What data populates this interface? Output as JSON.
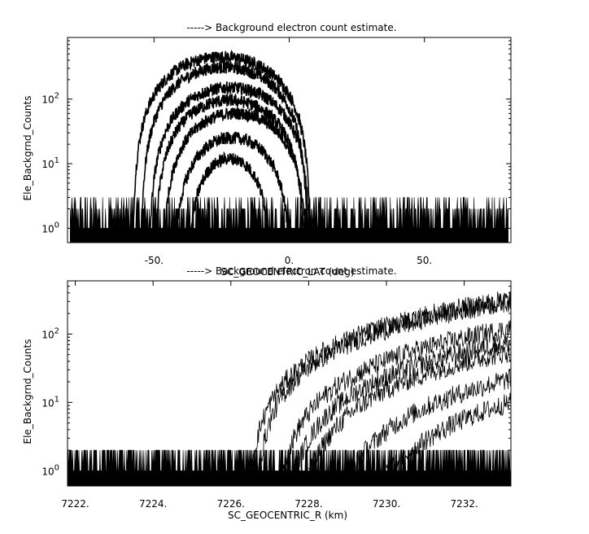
{
  "chart_data": [
    {
      "type": "line",
      "title": "-----> Background electron count estimate.",
      "xlabel": "SC_GEOCENTRIC_LAT (deg)",
      "ylabel": "Ele_Backgrnd_Counts",
      "xlim": [
        -82,
        82
      ],
      "ylim": [
        0.6,
        900
      ],
      "y_scale": "log",
      "x_ticks": [
        {
          "value": -50,
          "label": "-50."
        },
        {
          "value": 0,
          "label": "0."
        },
        {
          "value": 50,
          "label": "50."
        }
      ],
      "y_ticks": [
        {
          "value": 1,
          "base": "10",
          "exp": "0"
        },
        {
          "value": 10,
          "base": "10",
          "exp": "1"
        },
        {
          "value": 100,
          "base": "10",
          "exp": "2"
        }
      ],
      "background_noise_range": [
        1,
        3
      ],
      "noise_x_range": [
        -81,
        81
      ],
      "series": [
        {
          "peak_x": -25,
          "peak_y": 450,
          "half_width": 33
        },
        {
          "peak_x": -24,
          "peak_y": 310,
          "half_width": 31
        },
        {
          "peak_x": -22,
          "peak_y": 150,
          "half_width": 30
        },
        {
          "peak_x": -22,
          "peak_y": 95,
          "half_width": 28
        },
        {
          "peak_x": -20,
          "peak_y": 60,
          "half_width": 27
        },
        {
          "peak_x": -21,
          "peak_y": 25,
          "half_width": 22
        },
        {
          "peak_x": -22,
          "peak_y": 12,
          "half_width": 16
        }
      ]
    },
    {
      "type": "line",
      "title": "-----> Background electron count estimate.",
      "xlabel": "SC_GEOCENTRIC_R (km)",
      "ylabel": "Ele_Backgrnd_Counts",
      "xlim": [
        7221.8,
        7233.2
      ],
      "ylim": [
        0.6,
        600
      ],
      "y_scale": "log",
      "x_ticks": [
        {
          "value": 7222,
          "label": "7222."
        },
        {
          "value": 7224,
          "label": "7224."
        },
        {
          "value": 7226,
          "label": "7226."
        },
        {
          "value": 7228,
          "label": "7228."
        },
        {
          "value": 7230,
          "label": "7230."
        },
        {
          "value": 7232,
          "label": "7232."
        }
      ],
      "y_ticks": [
        {
          "value": 1,
          "base": "10",
          "exp": "0"
        },
        {
          "value": 10,
          "base": "10",
          "exp": "1"
        },
        {
          "value": 100,
          "base": "10",
          "exp": "2"
        }
      ],
      "background_noise_range": [
        1,
        2
      ],
      "noise_x_range": [
        7221.8,
        7233.2
      ],
      "series": [
        {
          "onset_x": 7226.5,
          "end_y": 320
        },
        {
          "onset_x": 7226.7,
          "end_y": 300
        },
        {
          "onset_x": 7227.3,
          "end_y": 120
        },
        {
          "onset_x": 7227.6,
          "end_y": 75
        },
        {
          "onset_x": 7228.0,
          "end_y": 55
        },
        {
          "onset_x": 7229.0,
          "end_y": 22
        },
        {
          "onset_x": 7230.0,
          "end_y": 10
        }
      ]
    }
  ]
}
